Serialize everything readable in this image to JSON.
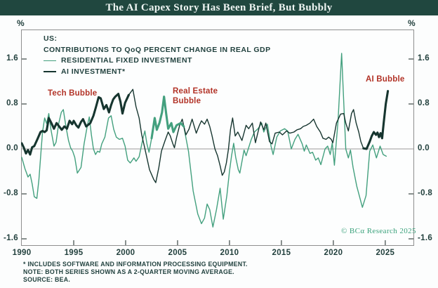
{
  "header": {
    "title": "The AI Capex Story Has Been Brief, But Bubbly"
  },
  "axes": {
    "left_unit": "%",
    "right_unit": "%",
    "y_ticks": [
      "1.6",
      "0.8",
      "0.0",
      "-0.8",
      "-1.6"
    ],
    "x_ticks": [
      "1990",
      "1995",
      "2000",
      "2005",
      "2010",
      "2015",
      "2020",
      "2025"
    ]
  },
  "legend": {
    "line1": "US:",
    "line2": "CONTRIBUTIONS TO QoQ PERCENT CHANGE IN REAL GDP",
    "series1": "RESIDENTIAL FIXED INVESTMENT",
    "series2": "AI INVESTMENT*"
  },
  "annotations": {
    "tech": "Tech Bubble",
    "real_estate_line1": "Real Estate",
    "real_estate_line2": "Bubble",
    "ai": "AI Bubble"
  },
  "copyright": "© BCα Research 2025",
  "footnotes": [
    "*  INCLUDES SOFTWARE AND INFORMATION PROCESSING EQUIPMENT.",
    "NOTE: BOTH SERIES SHOWN AS A 2-QUARTER MOVING AVERAGE.",
    "SOURCE: BEA."
  ],
  "colors": {
    "titlebar_bg": "#20473f",
    "title_text": "#eef4f2",
    "residential_line": "#43a07e",
    "ai_line": "#16352f",
    "annotation_red": "#b23327",
    "axis_text": "#22403d",
    "frame": "#8f8f8f",
    "zero_line": "#9a9a9a",
    "tick": "#4a5553",
    "copyright_green": "#3aa17b"
  },
  "chart_data": {
    "type": "line",
    "title": "The AI Capex Story Has Been Brief, But Bubbly",
    "subtitle": "US: CONTRIBUTIONS TO QoQ PERCENT CHANGE IN REAL GDP",
    "xlabel": "",
    "ylabel": "%",
    "xlim": [
      1989.93,
      2027.78
    ],
    "ylim": [
      -1.725,
      2.125
    ],
    "y_tick_values": [
      1.6,
      0.8,
      0.0,
      -0.8,
      -1.6
    ],
    "x_tick_values": [
      1990,
      1995,
      2000,
      2005,
      2010,
      2015,
      2020,
      2025
    ],
    "grid": false,
    "legend_position": "top-left",
    "series": [
      {
        "name": "RESIDENTIAL FIXED INVESTMENT",
        "color": "#43a07e",
        "bold_ranges": [
          [
            2002.5,
            2005.9
          ]
        ],
        "points": [
          [
            1990.0,
            -0.15
          ],
          [
            1990.3,
            -0.35
          ],
          [
            1990.6,
            -0.5
          ],
          [
            1990.8,
            -0.45
          ],
          [
            1991.0,
            -0.62
          ],
          [
            1991.2,
            -0.85
          ],
          [
            1991.45,
            -0.88
          ],
          [
            1991.65,
            -0.55
          ],
          [
            1991.85,
            -0.05
          ],
          [
            1992.0,
            0.3
          ],
          [
            1992.2,
            0.55
          ],
          [
            1992.4,
            0.45
          ],
          [
            1992.6,
            0.63
          ],
          [
            1992.8,
            0.35
          ],
          [
            1993.1,
            0.05
          ],
          [
            1993.3,
            0.12
          ],
          [
            1993.55,
            0.45
          ],
          [
            1993.8,
            0.65
          ],
          [
            1994.0,
            0.7
          ],
          [
            1994.25,
            0.4
          ],
          [
            1994.5,
            0.15
          ],
          [
            1994.7,
            0.02
          ],
          [
            1994.9,
            -0.04
          ],
          [
            1995.1,
            -0.15
          ],
          [
            1995.35,
            -0.43
          ],
          [
            1995.7,
            -0.33
          ],
          [
            1996.0,
            0.09
          ],
          [
            1996.3,
            0.4
          ],
          [
            1996.5,
            0.57
          ],
          [
            1996.7,
            0.25
          ],
          [
            1996.9,
            0.0
          ],
          [
            1997.1,
            -0.1
          ],
          [
            1997.3,
            -0.04
          ],
          [
            1997.5,
            -0.06
          ],
          [
            1997.7,
            0.09
          ],
          [
            1998.0,
            0.21
          ],
          [
            1998.35,
            0.55
          ],
          [
            1998.6,
            0.59
          ],
          [
            1998.85,
            0.35
          ],
          [
            1999.1,
            0.21
          ],
          [
            1999.4,
            0.17
          ],
          [
            1999.7,
            0.19
          ],
          [
            1999.95,
            0.05
          ],
          [
            2000.2,
            -0.2
          ],
          [
            2000.45,
            -0.25
          ],
          [
            2000.8,
            -0.16
          ],
          [
            2001.0,
            -0.22
          ],
          [
            2001.3,
            -0.14
          ],
          [
            2001.7,
            0.21
          ],
          [
            2001.85,
            0.32
          ],
          [
            2002.05,
            0.09
          ],
          [
            2002.25,
            -0.06
          ],
          [
            2002.5,
            0.19
          ],
          [
            2002.8,
            0.55
          ],
          [
            2003.0,
            0.34
          ],
          [
            2003.25,
            0.46
          ],
          [
            2003.5,
            0.65
          ],
          [
            2003.7,
            0.93
          ],
          [
            2003.9,
            0.63
          ],
          [
            2004.1,
            0.36
          ],
          [
            2004.4,
            0.46
          ],
          [
            2004.6,
            0.3
          ],
          [
            2004.9,
            0.42
          ],
          [
            2005.3,
            0.46
          ],
          [
            2005.6,
            0.4
          ],
          [
            2006.05,
            -0.04
          ],
          [
            2006.5,
            -0.75
          ],
          [
            2006.95,
            -1.16
          ],
          [
            2007.3,
            -1.33
          ],
          [
            2007.6,
            -1.23
          ],
          [
            2007.85,
            -0.98
          ],
          [
            2008.1,
            -1.08
          ],
          [
            2008.4,
            -1.39
          ],
          [
            2008.75,
            -1.08
          ],
          [
            2009.1,
            -0.7
          ],
          [
            2009.4,
            -1.25
          ],
          [
            2009.75,
            -0.83
          ],
          [
            2010.0,
            -0.4
          ],
          [
            2010.2,
            -0.12
          ],
          [
            2010.4,
            0.1
          ],
          [
            2010.6,
            -0.15
          ],
          [
            2010.85,
            -0.37
          ],
          [
            2011.0,
            -0.43
          ],
          [
            2011.4,
            -0.02
          ],
          [
            2011.6,
            -0.12
          ],
          [
            2012.1,
            0.17
          ],
          [
            2012.4,
            0.3
          ],
          [
            2012.75,
            0.36
          ],
          [
            2013.1,
            0.46
          ],
          [
            2013.3,
            0.3
          ],
          [
            2013.65,
            0.44
          ],
          [
            2014.0,
            0.05
          ],
          [
            2014.2,
            -0.1
          ],
          [
            2014.55,
            0.21
          ],
          [
            2014.9,
            0.32
          ],
          [
            2015.3,
            0.36
          ],
          [
            2015.6,
            0.32
          ],
          [
            2015.95,
            0.0
          ],
          [
            2016.3,
            0.17
          ],
          [
            2016.6,
            0.26
          ],
          [
            2017.0,
            0.09
          ],
          [
            2017.2,
            -0.04
          ],
          [
            2017.4,
            0.07
          ],
          [
            2017.75,
            -0.08
          ],
          [
            2018.0,
            -0.06
          ],
          [
            2018.3,
            -0.2
          ],
          [
            2018.55,
            -0.16
          ],
          [
            2018.8,
            -0.28
          ],
          [
            2019.2,
            0.0
          ],
          [
            2019.45,
            0.05
          ],
          [
            2019.7,
            -0.1
          ],
          [
            2019.9,
            0.11
          ],
          [
            2020.1,
            -0.29
          ],
          [
            2020.45,
            0.5
          ],
          [
            2020.8,
            1.7
          ],
          [
            2021.2,
            0.0
          ],
          [
            2021.45,
            -0.16
          ],
          [
            2021.65,
            -0.02
          ],
          [
            2021.9,
            -0.33
          ],
          [
            2022.25,
            -0.66
          ],
          [
            2022.8,
            -1.04
          ],
          [
            2023.15,
            -0.83
          ],
          [
            2023.5,
            -0.04
          ],
          [
            2023.8,
            0.07
          ],
          [
            2024.15,
            -0.16
          ],
          [
            2024.5,
            0.05
          ],
          [
            2024.8,
            -0.1
          ],
          [
            2025.1,
            -0.13
          ]
        ]
      },
      {
        "name": "AI INVESTMENT*",
        "color": "#16352f",
        "bold_ranges": [
          [
            1989.9,
            2000.5
          ],
          [
            2022.9,
            2025.25
          ]
        ],
        "points": [
          [
            1990.0,
            0.1
          ],
          [
            1990.2,
            0.02
          ],
          [
            1990.4,
            -0.08
          ],
          [
            1990.6,
            -0.02
          ],
          [
            1990.8,
            -0.1
          ],
          [
            1991.0,
            0.03
          ],
          [
            1991.2,
            0.05
          ],
          [
            1991.5,
            0.17
          ],
          [
            1991.8,
            0.3
          ],
          [
            1992.0,
            0.32
          ],
          [
            1992.2,
            0.3
          ],
          [
            1992.4,
            0.33
          ],
          [
            1992.6,
            0.55
          ],
          [
            1992.85,
            0.46
          ],
          [
            1993.1,
            0.36
          ],
          [
            1993.35,
            0.46
          ],
          [
            1993.6,
            0.4
          ],
          [
            1993.85,
            0.34
          ],
          [
            1994.1,
            0.4
          ],
          [
            1994.35,
            0.36
          ],
          [
            1994.6,
            0.5
          ],
          [
            1994.85,
            0.44
          ],
          [
            1995.0,
            0.5
          ],
          [
            1995.25,
            0.42
          ],
          [
            1995.45,
            0.38
          ],
          [
            1995.7,
            0.48
          ],
          [
            1995.9,
            0.53
          ],
          [
            1996.2,
            0.4
          ],
          [
            1996.6,
            0.46
          ],
          [
            1996.9,
            0.59
          ],
          [
            1997.15,
            0.75
          ],
          [
            1997.4,
            0.92
          ],
          [
            1997.6,
            0.9
          ],
          [
            1997.9,
            0.71
          ],
          [
            1998.15,
            0.78
          ],
          [
            1998.4,
            0.65
          ],
          [
            1998.6,
            0.78
          ],
          [
            1998.8,
            0.88
          ],
          [
            1999.0,
            0.93
          ],
          [
            1999.3,
            0.98
          ],
          [
            1999.5,
            0.84
          ],
          [
            1999.7,
            0.63
          ],
          [
            1999.95,
            0.82
          ],
          [
            2000.3,
            0.96
          ],
          [
            2000.7,
            1.06
          ],
          [
            2001.0,
            0.75
          ],
          [
            2001.3,
            0.55
          ],
          [
            2001.55,
            0.25
          ],
          [
            2001.8,
            0.05
          ],
          [
            2002.0,
            -0.12
          ],
          [
            2002.3,
            -0.37
          ],
          [
            2002.7,
            -0.54
          ],
          [
            2002.9,
            -0.6
          ],
          [
            2003.2,
            -0.33
          ],
          [
            2003.45,
            -0.04
          ],
          [
            2003.8,
            0.15
          ],
          [
            2004.1,
            0.3
          ],
          [
            2004.3,
            0.23
          ],
          [
            2004.55,
            0.09
          ],
          [
            2004.7,
            0.02
          ],
          [
            2004.9,
            0.2
          ],
          [
            2005.2,
            0.42
          ],
          [
            2005.45,
            0.53
          ],
          [
            2005.8,
            0.25
          ],
          [
            2006.1,
            0.35
          ],
          [
            2006.4,
            0.53
          ],
          [
            2006.8,
            0.28
          ],
          [
            2007.1,
            0.42
          ],
          [
            2007.3,
            0.5
          ],
          [
            2007.6,
            0.44
          ],
          [
            2007.85,
            0.53
          ],
          [
            2008.1,
            0.4
          ],
          [
            2008.3,
            0.25
          ],
          [
            2008.6,
            0.0
          ],
          [
            2008.85,
            -0.12
          ],
          [
            2009.1,
            -0.3
          ],
          [
            2009.3,
            -0.47
          ],
          [
            2009.5,
            -0.41
          ],
          [
            2009.7,
            -0.25
          ],
          [
            2009.9,
            0.0
          ],
          [
            2010.1,
            0.35
          ],
          [
            2010.3,
            0.55
          ],
          [
            2010.55,
            0.23
          ],
          [
            2010.8,
            0.3
          ],
          [
            2011.2,
            0.15
          ],
          [
            2011.6,
            0.42
          ],
          [
            2011.85,
            0.36
          ],
          [
            2012.2,
            0.46
          ],
          [
            2012.5,
            0.11
          ],
          [
            2012.75,
            0.3
          ],
          [
            2013.0,
            0.48
          ],
          [
            2013.3,
            0.34
          ],
          [
            2013.5,
            0.46
          ],
          [
            2013.85,
            0.13
          ],
          [
            2014.1,
            0.09
          ],
          [
            2014.4,
            0.28
          ],
          [
            2014.8,
            0.3
          ],
          [
            2015.1,
            0.25
          ],
          [
            2015.5,
            0.32
          ],
          [
            2015.8,
            0.28
          ],
          [
            2016.2,
            0.3
          ],
          [
            2016.5,
            0.34
          ],
          [
            2016.85,
            0.36
          ],
          [
            2017.1,
            0.4
          ],
          [
            2017.4,
            0.42
          ],
          [
            2017.75,
            0.46
          ],
          [
            2018.1,
            0.53
          ],
          [
            2018.4,
            0.4
          ],
          [
            2018.75,
            0.3
          ],
          [
            2019.0,
            0.19
          ],
          [
            2019.3,
            0.17
          ],
          [
            2019.55,
            0.21
          ],
          [
            2019.8,
            0.17
          ],
          [
            2019.95,
            0.11
          ],
          [
            2020.3,
            0.46
          ],
          [
            2020.7,
            0.62
          ],
          [
            2021.0,
            0.63
          ],
          [
            2021.2,
            0.46
          ],
          [
            2021.45,
            0.32
          ],
          [
            2021.75,
            0.63
          ],
          [
            2021.95,
            0.7
          ],
          [
            2022.2,
            0.46
          ],
          [
            2022.45,
            0.3
          ],
          [
            2022.65,
            0.13
          ],
          [
            2022.9,
            0.01
          ],
          [
            2023.2,
            0.0
          ],
          [
            2023.5,
            0.13
          ],
          [
            2023.7,
            0.23
          ],
          [
            2023.9,
            0.3
          ],
          [
            2024.1,
            0.25
          ],
          [
            2024.25,
            0.29
          ],
          [
            2024.4,
            0.21
          ],
          [
            2024.55,
            0.28
          ],
          [
            2024.7,
            0.19
          ],
          [
            2024.85,
            0.46
          ],
          [
            2025.05,
            0.8
          ],
          [
            2025.25,
            1.03
          ]
        ]
      }
    ]
  }
}
